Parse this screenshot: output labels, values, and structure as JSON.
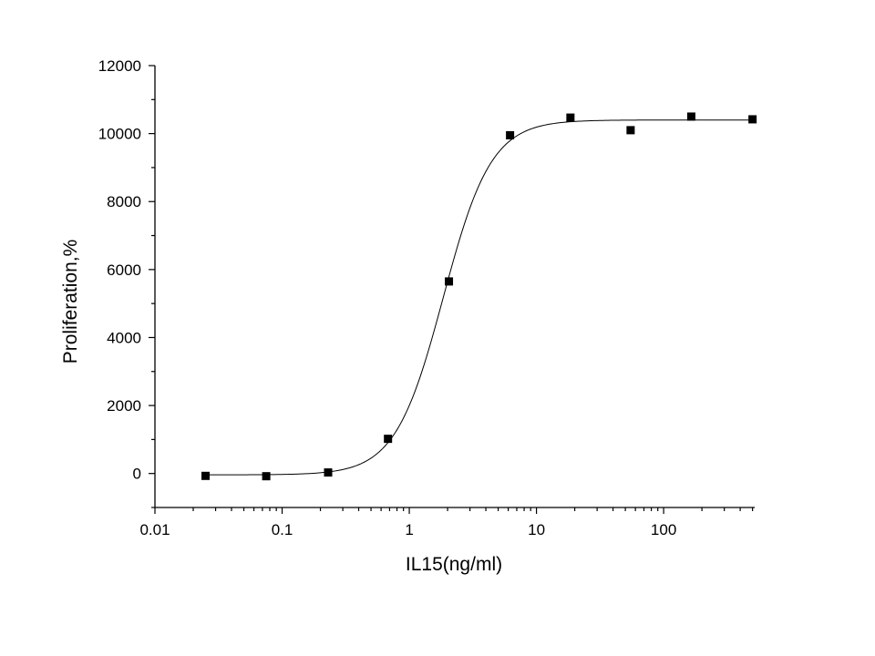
{
  "chart_data": {
    "type": "scatter",
    "xlabel": "IL15(ng/ml)",
    "ylabel": "Proliferation,%",
    "x_scale": "log",
    "xlim": [
      0.01,
      520
    ],
    "ylim": [
      -1000,
      12000
    ],
    "x_major_ticks": [
      0.01,
      0.1,
      1,
      10,
      100
    ],
    "x_tick_labels": [
      "0.01",
      "0.1",
      "1",
      "10",
      "100"
    ],
    "y_major_ticks": [
      0,
      2000,
      4000,
      6000,
      8000,
      10000,
      12000
    ],
    "y_tick_labels": [
      "0",
      "2000",
      "4000",
      "6000",
      "8000",
      "10000",
      "12000"
    ],
    "grid": false,
    "legend": "none",
    "series": [
      {
        "marker": "square",
        "color": "#000000",
        "x": [
          0.025,
          0.075,
          0.23,
          0.68,
          2.05,
          6.2,
          18.5,
          55,
          165,
          500
        ],
        "y": [
          -70,
          -80,
          30,
          1020,
          5650,
          9950,
          10470,
          10100,
          10500,
          10420
        ]
      }
    ],
    "fit_curve": {
      "model": "4PL",
      "bottom": -40,
      "top": 10400,
      "ec50": 1.85,
      "hill": 2.3,
      "color": "#000000"
    }
  }
}
